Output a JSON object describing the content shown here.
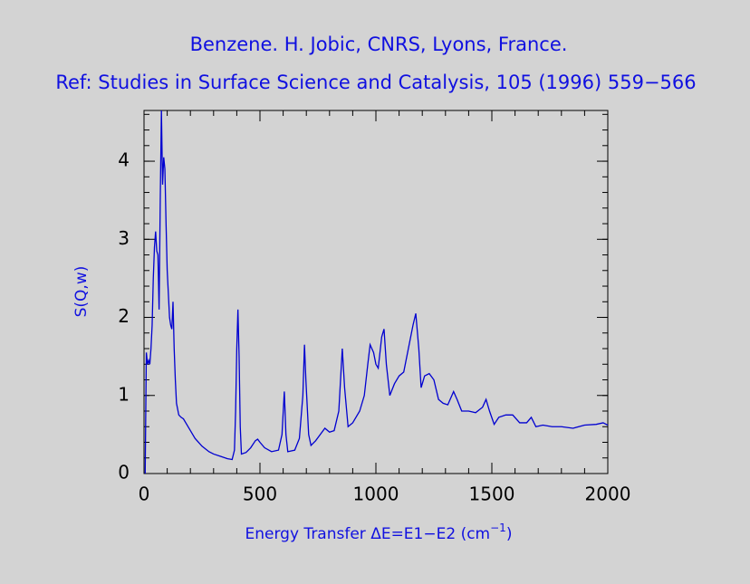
{
  "chart_data": {
    "type": "line",
    "title": "Benzene. H. Jobic, CNRS, Lyons, France.",
    "subtitle": "Ref: Studies in Surface Science and Catalysis, 105 (1996) 559−566",
    "xlabel": [
      "Energy Transfer ΔE=E1−E2 (cm",
      "−1",
      ")"
    ],
    "ylabel": "S(Q,w)",
    "color": "#0000d0",
    "xlim": [
      0,
      2000
    ],
    "xticks": [
      0,
      500,
      1000,
      1500,
      2000
    ],
    "ylim": [
      0,
      4.65
    ],
    "yticks": [
      0,
      1,
      2,
      3,
      4
    ],
    "x": [
      5,
      10,
      15,
      20,
      25,
      30,
      35,
      40,
      45,
      50,
      55,
      60,
      65,
      70,
      75,
      80,
      85,
      90,
      95,
      100,
      105,
      110,
      115,
      120,
      125,
      130,
      135,
      140,
      150,
      160,
      170,
      180,
      200,
      220,
      250,
      280,
      300,
      330,
      360,
      380,
      390,
      395,
      400,
      405,
      410,
      415,
      420,
      440,
      460,
      480,
      490,
      500,
      520,
      550,
      580,
      595,
      605,
      612,
      620,
      650,
      670,
      685,
      692,
      698,
      710,
      720,
      740,
      760,
      780,
      800,
      820,
      840,
      855,
      865,
      880,
      900,
      930,
      950,
      965,
      975,
      990,
      1000,
      1010,
      1025,
      1035,
      1045,
      1060,
      1080,
      1100,
      1120,
      1140,
      1160,
      1172,
      1185,
      1195,
      1210,
      1230,
      1250,
      1270,
      1290,
      1310,
      1335,
      1350,
      1370,
      1400,
      1430,
      1460,
      1475,
      1490,
      1510,
      1530,
      1560,
      1590,
      1620,
      1650,
      1670,
      1690,
      1720,
      1760,
      1800,
      1850,
      1900,
      1950,
      1980,
      2000
    ],
    "values": [
      0,
      1.55,
      1.4,
      1.45,
      1.4,
      1.6,
      1.9,
      2.5,
      2.9,
      3.1,
      2.85,
      2.8,
      2.1,
      3.5,
      4.65,
      3.7,
      4.05,
      3.9,
      3.2,
      2.6,
      2.3,
      2.0,
      1.9,
      1.85,
      2.2,
      1.6,
      1.2,
      0.9,
      0.75,
      0.72,
      0.7,
      0.65,
      0.55,
      0.45,
      0.35,
      0.28,
      0.25,
      0.22,
      0.19,
      0.18,
      0.3,
      0.8,
      1.6,
      2.1,
      1.5,
      0.6,
      0.25,
      0.27,
      0.33,
      0.42,
      0.44,
      0.4,
      0.33,
      0.28,
      0.3,
      0.5,
      1.05,
      0.5,
      0.28,
      0.3,
      0.45,
      1.0,
      1.65,
      1.2,
      0.5,
      0.36,
      0.42,
      0.5,
      0.58,
      0.53,
      0.55,
      0.8,
      1.6,
      1.1,
      0.6,
      0.65,
      0.8,
      1.0,
      1.4,
      1.65,
      1.55,
      1.4,
      1.35,
      1.75,
      1.85,
      1.4,
      1.0,
      1.15,
      1.25,
      1.3,
      1.6,
      1.9,
      2.05,
      1.6,
      1.1,
      1.25,
      1.28,
      1.2,
      0.95,
      0.9,
      0.88,
      1.05,
      0.95,
      0.8,
      0.8,
      0.78,
      0.85,
      0.95,
      0.8,
      0.63,
      0.72,
      0.75,
      0.75,
      0.65,
      0.65,
      0.72,
      0.6,
      0.62,
      0.6,
      0.6,
      0.58,
      0.62,
      0.63,
      0.65,
      0.62
    ]
  }
}
